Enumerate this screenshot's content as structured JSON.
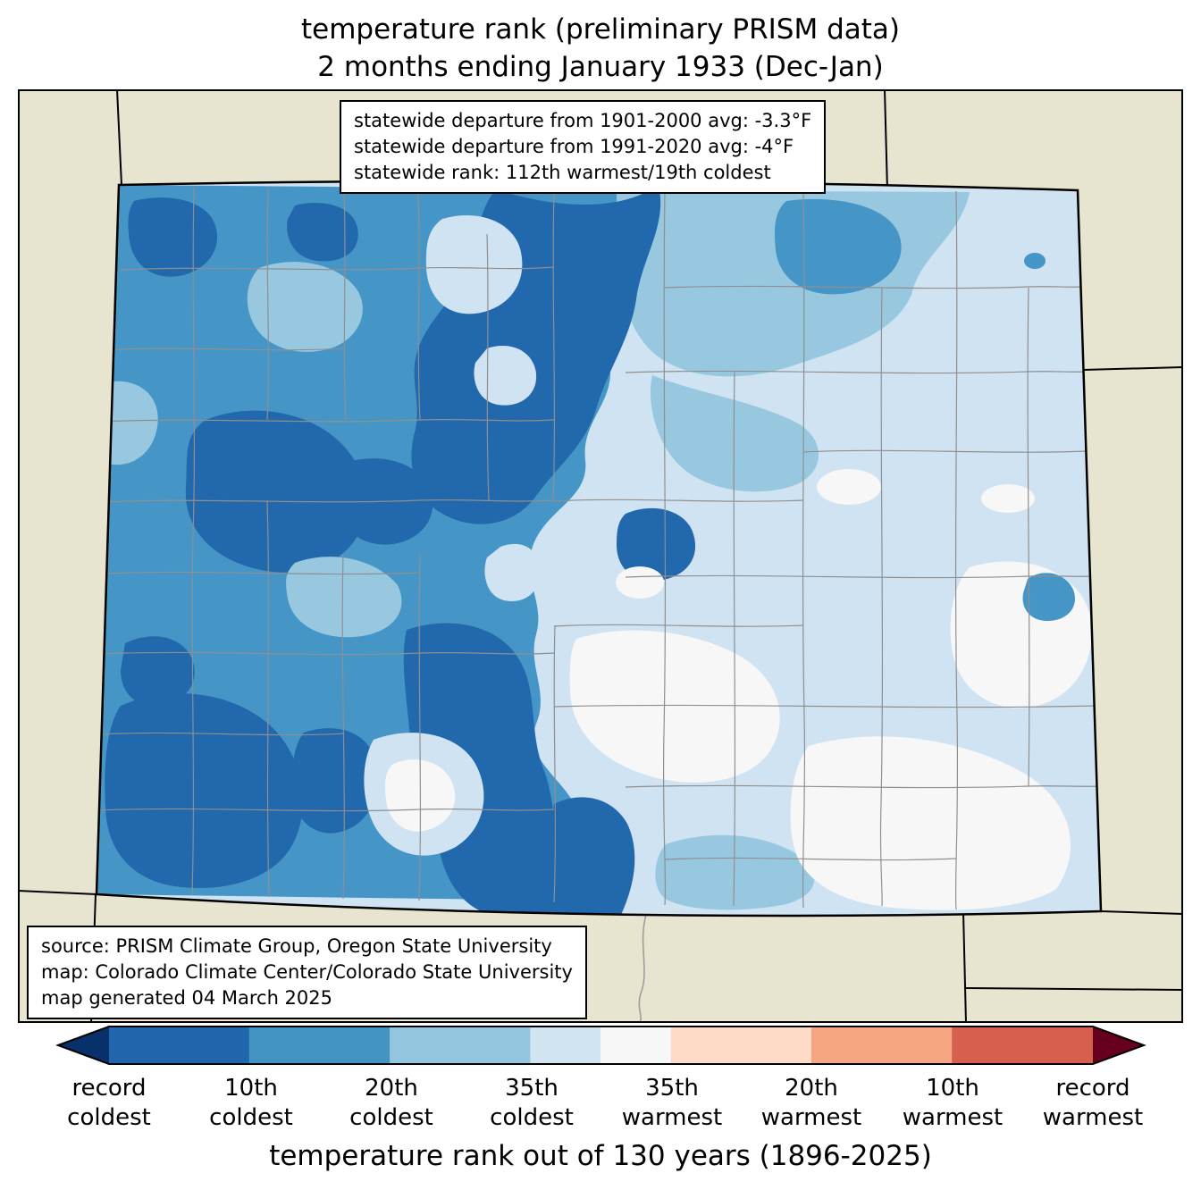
{
  "title": {
    "line1": "temperature rank (preliminary PRISM data)",
    "line2": "2 months ending January 1933 (Dec-Jan)"
  },
  "stats": {
    "line1": "statewide departure from 1901-2000 avg: -3.3°F",
    "line2": "statewide departure from 1991-2020 avg: -4°F",
    "line3": "statewide rank: 112th warmest/19th coldest"
  },
  "source": {
    "line1": "source: PRISM Climate Group, Oregon State University",
    "line2": "map: Colorado Climate Center/Colorado State University",
    "line3": "map generated 04 March 2025"
  },
  "caption": "temperature rank out of 130 years (1896-2025)",
  "legend": {
    "left_arrow_color": "#08306b",
    "right_arrow_color": "#67001f",
    "segments": [
      {
        "color": "#2166ac",
        "w": 1
      },
      {
        "color": "#4393c3",
        "w": 1
      },
      {
        "color": "#92c5de",
        "w": 1
      },
      {
        "color": "#d1e5f0",
        "w": 0.5
      },
      {
        "color": "#f7f7f7",
        "w": 0.5
      },
      {
        "color": "#fddbc7",
        "w": 1
      },
      {
        "color": "#f4a582",
        "w": 1
      },
      {
        "color": "#d6604d",
        "w": 1
      }
    ],
    "labels": [
      {
        "line1": "record",
        "line2": "coldest"
      },
      {
        "line1": "10th",
        "line2": "coldest"
      },
      {
        "line1": "20th",
        "line2": "coldest"
      },
      {
        "line1": "35th",
        "line2": "coldest"
      },
      {
        "line1": "35th",
        "line2": "warmest"
      },
      {
        "line1": "20th",
        "line2": "warmest"
      },
      {
        "line1": "10th",
        "line2": "warmest"
      },
      {
        "line1": "record",
        "line2": "warmest"
      }
    ]
  },
  "map_colors": {
    "background_out_of_state": "#e7e5d0",
    "coldest_core": "#2268ac",
    "cold": "#4596c7",
    "cool": "#98c8e0",
    "mild_cool": "#cfe3f2",
    "near_median": "#f7f7f7",
    "county_line": "#8f8f8f",
    "state_line": "#000000"
  }
}
